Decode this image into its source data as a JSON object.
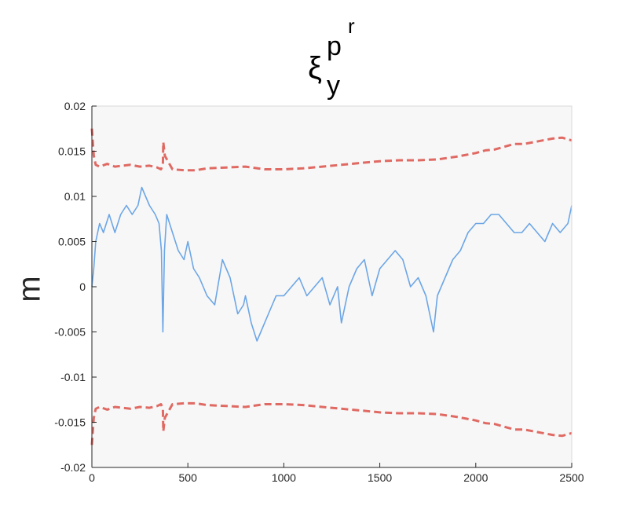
{
  "chart_data": {
    "type": "line",
    "title": {
      "symbol": "ξ",
      "subscript": "y",
      "superscript_base": "p",
      "superscript_sup": "r"
    },
    "xlabel": "",
    "ylabel": "m",
    "xlim": [
      0,
      2500
    ],
    "ylim": [
      -0.02,
      0.02
    ],
    "x_ticks": [
      0,
      500,
      1000,
      1500,
      2000,
      2500
    ],
    "x_tick_labels": [
      "0",
      "500",
      "1000",
      "1500",
      "2000",
      "2500"
    ],
    "y_ticks": [
      -0.02,
      -0.015,
      -0.01,
      -0.005,
      0,
      0.005,
      0.01,
      0.015,
      0.02
    ],
    "y_tick_labels": [
      "-0.02",
      "-0.015",
      "-0.01",
      "-0.005",
      "0",
      "0.005",
      "0.01",
      "0.015",
      "0.02"
    ],
    "grid": false,
    "background": "#f7f7f7",
    "series": [
      {
        "style": "solid",
        "color": "#6ca6e6",
        "x": [
          0,
          10,
          20,
          40,
          60,
          90,
          120,
          150,
          180,
          210,
          240,
          260,
          280,
          300,
          330,
          350,
          362,
          370,
          378,
          390,
          420,
          450,
          480,
          500,
          530,
          560,
          600,
          640,
          680,
          720,
          760,
          790,
          800,
          830,
          860,
          880,
          920,
          960,
          1000,
          1040,
          1080,
          1120,
          1160,
          1200,
          1240,
          1280,
          1300,
          1340,
          1380,
          1420,
          1460,
          1500,
          1540,
          1580,
          1620,
          1660,
          1700,
          1740,
          1760,
          1780,
          1800,
          1840,
          1880,
          1920,
          1960,
          2000,
          2040,
          2080,
          2120,
          2160,
          2200,
          2240,
          2280,
          2320,
          2360,
          2400,
          2440,
          2480,
          2500
        ],
        "y": [
          0.0,
          0.002,
          0.005,
          0.007,
          0.006,
          0.008,
          0.006,
          0.008,
          0.009,
          0.008,
          0.009,
          0.011,
          0.01,
          0.009,
          0.008,
          0.007,
          0.004,
          -0.005,
          0.004,
          0.008,
          0.006,
          0.004,
          0.003,
          0.005,
          0.002,
          0.001,
          -0.001,
          -0.002,
          0.003,
          0.001,
          -0.003,
          -0.002,
          -0.001,
          -0.004,
          -0.006,
          -0.005,
          -0.003,
          -0.001,
          -0.001,
          0.0,
          0.001,
          -0.001,
          0.0,
          0.001,
          -0.002,
          0.0,
          -0.004,
          0.0,
          0.002,
          0.003,
          -0.001,
          0.002,
          0.003,
          0.004,
          0.003,
          0.0,
          0.001,
          -0.001,
          -0.003,
          -0.005,
          -0.001,
          0.001,
          0.003,
          0.004,
          0.006,
          0.007,
          0.007,
          0.008,
          0.008,
          0.007,
          0.006,
          0.006,
          0.007,
          0.006,
          0.005,
          0.007,
          0.006,
          0.007,
          0.009
        ]
      },
      {
        "style": "dashed",
        "color": "#e06a63",
        "x": [
          0,
          5,
          10,
          20,
          40,
          80,
          120,
          160,
          200,
          250,
          300,
          340,
          360,
          370,
          372,
          380,
          420,
          480,
          540,
          600,
          700,
          800,
          900,
          1000,
          1100,
          1200,
          1300,
          1400,
          1500,
          1600,
          1700,
          1800,
          1900,
          1950,
          2000,
          2050,
          2100,
          2150,
          2200,
          2250,
          2300,
          2350,
          2400,
          2450,
          2500
        ],
        "y": [
          0.0175,
          0.016,
          0.0145,
          0.0135,
          0.0133,
          0.0136,
          0.0133,
          0.0134,
          0.0135,
          0.0133,
          0.0134,
          0.0132,
          0.013,
          0.0135,
          0.016,
          0.0145,
          0.013,
          0.0129,
          0.0129,
          0.0131,
          0.0132,
          0.0133,
          0.013,
          0.013,
          0.0131,
          0.0133,
          0.0135,
          0.0137,
          0.0139,
          0.014,
          0.014,
          0.0141,
          0.0144,
          0.0146,
          0.0148,
          0.0151,
          0.0152,
          0.0155,
          0.0158,
          0.0158,
          0.016,
          0.0162,
          0.0164,
          0.0165,
          0.0162
        ]
      },
      {
        "style": "dashed",
        "color": "#e06a63",
        "x": [
          0,
          5,
          10,
          20,
          40,
          80,
          120,
          160,
          200,
          250,
          300,
          340,
          360,
          370,
          372,
          380,
          420,
          480,
          540,
          600,
          700,
          800,
          900,
          1000,
          1100,
          1200,
          1300,
          1400,
          1500,
          1600,
          1700,
          1800,
          1900,
          1950,
          2000,
          2050,
          2100,
          2150,
          2200,
          2250,
          2300,
          2350,
          2400,
          2450,
          2500
        ],
        "y": [
          -0.0175,
          -0.016,
          -0.0145,
          -0.0135,
          -0.0133,
          -0.0136,
          -0.0133,
          -0.0134,
          -0.0135,
          -0.0133,
          -0.0134,
          -0.0132,
          -0.013,
          -0.0135,
          -0.016,
          -0.0145,
          -0.013,
          -0.0129,
          -0.0129,
          -0.0131,
          -0.0132,
          -0.0133,
          -0.013,
          -0.013,
          -0.0131,
          -0.0133,
          -0.0135,
          -0.0137,
          -0.0139,
          -0.014,
          -0.014,
          -0.0141,
          -0.0144,
          -0.0146,
          -0.0148,
          -0.0151,
          -0.0152,
          -0.0155,
          -0.0158,
          -0.0158,
          -0.016,
          -0.0162,
          -0.0164,
          -0.0165,
          -0.0162
        ]
      }
    ]
  }
}
